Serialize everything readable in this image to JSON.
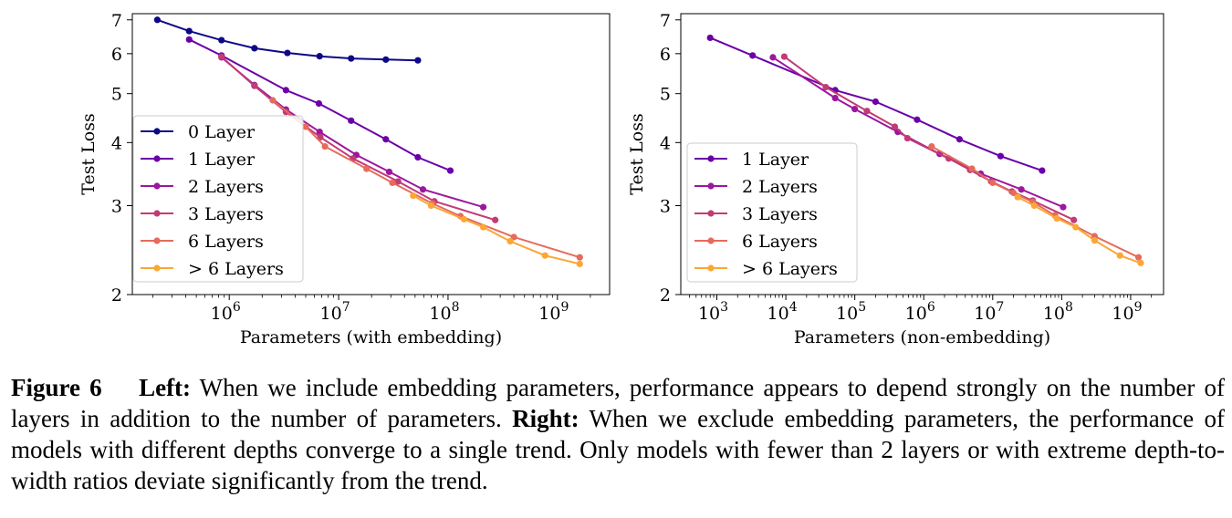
{
  "caption": {
    "figure_label": "Figure 6",
    "left_label": "Left:",
    "left_text": " When we include embedding parameters, performance appears to depend strongly on the number of layers in addition to the number of parameters.",
    "right_label": "Right:",
    "right_text": " When we exclude embedding parameters, the performance of models with different depths converge to a single trend. Only models with fewer than 2 layers or with extreme depth-to-width ratios deviate significantly from the trend."
  },
  "colors": {
    "0 Layer": "#0d0887",
    "1 Layer": "#6a00a8",
    "2 Layers": "#9c179e",
    "3 Layers": "#c23b75",
    "6 Layers": "#e56b5d",
    "> 6 Layers": "#fca636"
  },
  "chart_data": [
    {
      "type": "line",
      "xlabel": "Parameters (with embedding)",
      "ylabel": "Test Loss",
      "xscale": "log",
      "yscale": "log",
      "xlim": [
        130000,
        3000000000
      ],
      "ylim": [
        2,
        7.2
      ],
      "xticks": [
        1000000,
        10000000,
        100000000,
        1000000000
      ],
      "xtick_exponents": [
        "6",
        "7",
        "8",
        "9"
      ],
      "yticks": [
        2,
        3,
        4,
        5,
        6,
        7
      ],
      "ytick_labels": [
        "2",
        "3",
        "4",
        "5",
        "6",
        "7"
      ],
      "legend_position": "center-left",
      "grid": false,
      "series": [
        {
          "name": "0 Layer",
          "x": [
            220000,
            430000,
            850000,
            1700000,
            3400000,
            6700000,
            13000000,
            27000000,
            53000000
          ],
          "y": [
            7.0,
            6.65,
            6.38,
            6.15,
            6.02,
            5.93,
            5.87,
            5.84,
            5.82
          ]
        },
        {
          "name": "1 Layer",
          "x": [
            430000,
            850000,
            3300000,
            6600000,
            13000000,
            27000000,
            53000000,
            105000000
          ],
          "y": [
            6.4,
            5.95,
            5.08,
            4.78,
            4.42,
            4.06,
            3.74,
            3.52
          ]
        },
        {
          "name": "2 Layers",
          "x": [
            850000,
            1700000,
            3300000,
            6700000,
            14500000,
            29000000,
            59000000,
            210000000
          ],
          "y": [
            5.9,
            5.2,
            4.65,
            4.2,
            3.78,
            3.5,
            3.23,
            2.98
          ]
        },
        {
          "name": "3 Layers",
          "x": [
            850000,
            1700000,
            3300000,
            6800000,
            13500000,
            35000000,
            75000000,
            270000000
          ],
          "y": [
            5.92,
            5.18,
            4.6,
            4.1,
            3.72,
            3.35,
            3.06,
            2.81
          ]
        },
        {
          "name": "6 Layers",
          "x": [
            2500000,
            5000000,
            7500000,
            18000000,
            31000000,
            72000000,
            130000000,
            400000000,
            1600000000
          ],
          "y": [
            4.85,
            4.3,
            3.93,
            3.55,
            3.33,
            3.03,
            2.86,
            2.6,
            2.37
          ]
        },
        {
          "name": "> 6 Layers",
          "x": [
            48000000,
            70000000,
            140000000,
            210000000,
            370000000,
            770000000,
            1600000000
          ],
          "y": [
            3.14,
            3.0,
            2.82,
            2.72,
            2.55,
            2.39,
            2.3
          ]
        }
      ]
    },
    {
      "type": "line",
      "xlabel": "Parameters (non-embedding)",
      "ylabel": "Test Loss",
      "xscale": "log",
      "yscale": "log",
      "xlim": [
        300,
        3000000000
      ],
      "ylim": [
        2,
        7.2
      ],
      "xticks": [
        1000,
        10000,
        100000,
        1000000,
        10000000,
        100000000,
        1000000000
      ],
      "xtick_exponents": [
        "3",
        "4",
        "5",
        "6",
        "7",
        "8",
        "9"
      ],
      "yticks": [
        2,
        3,
        4,
        5,
        6,
        7
      ],
      "ytick_labels": [
        "2",
        "3",
        "4",
        "5",
        "6",
        "7"
      ],
      "legend_position": "center-left",
      "grid": false,
      "series": [
        {
          "name": "1 Layer",
          "x": [
            800,
            3300,
            52000,
            200000,
            800000,
            3300000,
            13000000,
            52000000
          ],
          "y": [
            6.45,
            5.95,
            5.08,
            4.82,
            4.44,
            4.06,
            3.76,
            3.52
          ]
        },
        {
          "name": "2 Layers",
          "x": [
            6500,
            52000,
            100000,
            420000,
            1700000,
            6700000,
            26000000,
            105000000
          ],
          "y": [
            5.9,
            4.9,
            4.66,
            4.2,
            3.8,
            3.47,
            3.23,
            2.98
          ]
        },
        {
          "name": "3 Layers",
          "x": [
            9500,
            38000,
            150000,
            380000,
            580000,
            2300000,
            4700000,
            9500000,
            19000000,
            38000000,
            150000000
          ],
          "y": [
            5.92,
            5.15,
            4.62,
            4.3,
            4.08,
            3.72,
            3.53,
            3.35,
            3.2,
            3.07,
            2.81
          ]
        },
        {
          "name": "6 Layers",
          "x": [
            1300000,
            5000000,
            10000000,
            20000000,
            38000000,
            80000000,
            300000000,
            1300000000
          ],
          "y": [
            3.93,
            3.55,
            3.33,
            3.18,
            3.05,
            2.87,
            2.61,
            2.37
          ]
        },
        {
          "name": "> 6 Layers",
          "x": [
            23000000,
            40000000,
            85000000,
            160000000,
            300000000,
            700000000,
            1400000000
          ],
          "y": [
            3.12,
            3.0,
            2.83,
            2.72,
            2.56,
            2.39,
            2.31
          ]
        }
      ]
    }
  ]
}
